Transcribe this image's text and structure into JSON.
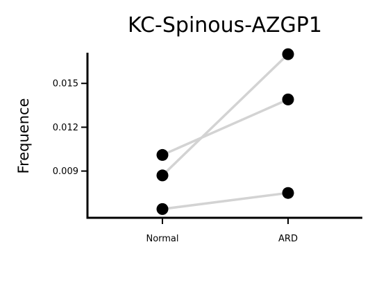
{
  "chart_data": {
    "type": "scatter",
    "title": "KC-Spinous-AZGP1",
    "xlabel": "",
    "ylabel": "Frequence",
    "categories": [
      "Normal",
      "ARD"
    ],
    "yticks": [
      "0.009",
      "0.012",
      "0.015"
    ],
    "ytick_values": [
      0.009,
      0.012,
      0.015
    ],
    "ylim": [
      0.0058,
      0.0171
    ],
    "pairs": [
      {
        "values": [
          0.0101,
          0.0139
        ]
      },
      {
        "values": [
          0.0087,
          0.017
        ]
      },
      {
        "values": [
          0.0064,
          0.0075
        ]
      }
    ],
    "grid": false,
    "legend": "none",
    "colors": {
      "line": "#d3d3d3",
      "point": "#000000",
      "axis": "#000000"
    }
  }
}
